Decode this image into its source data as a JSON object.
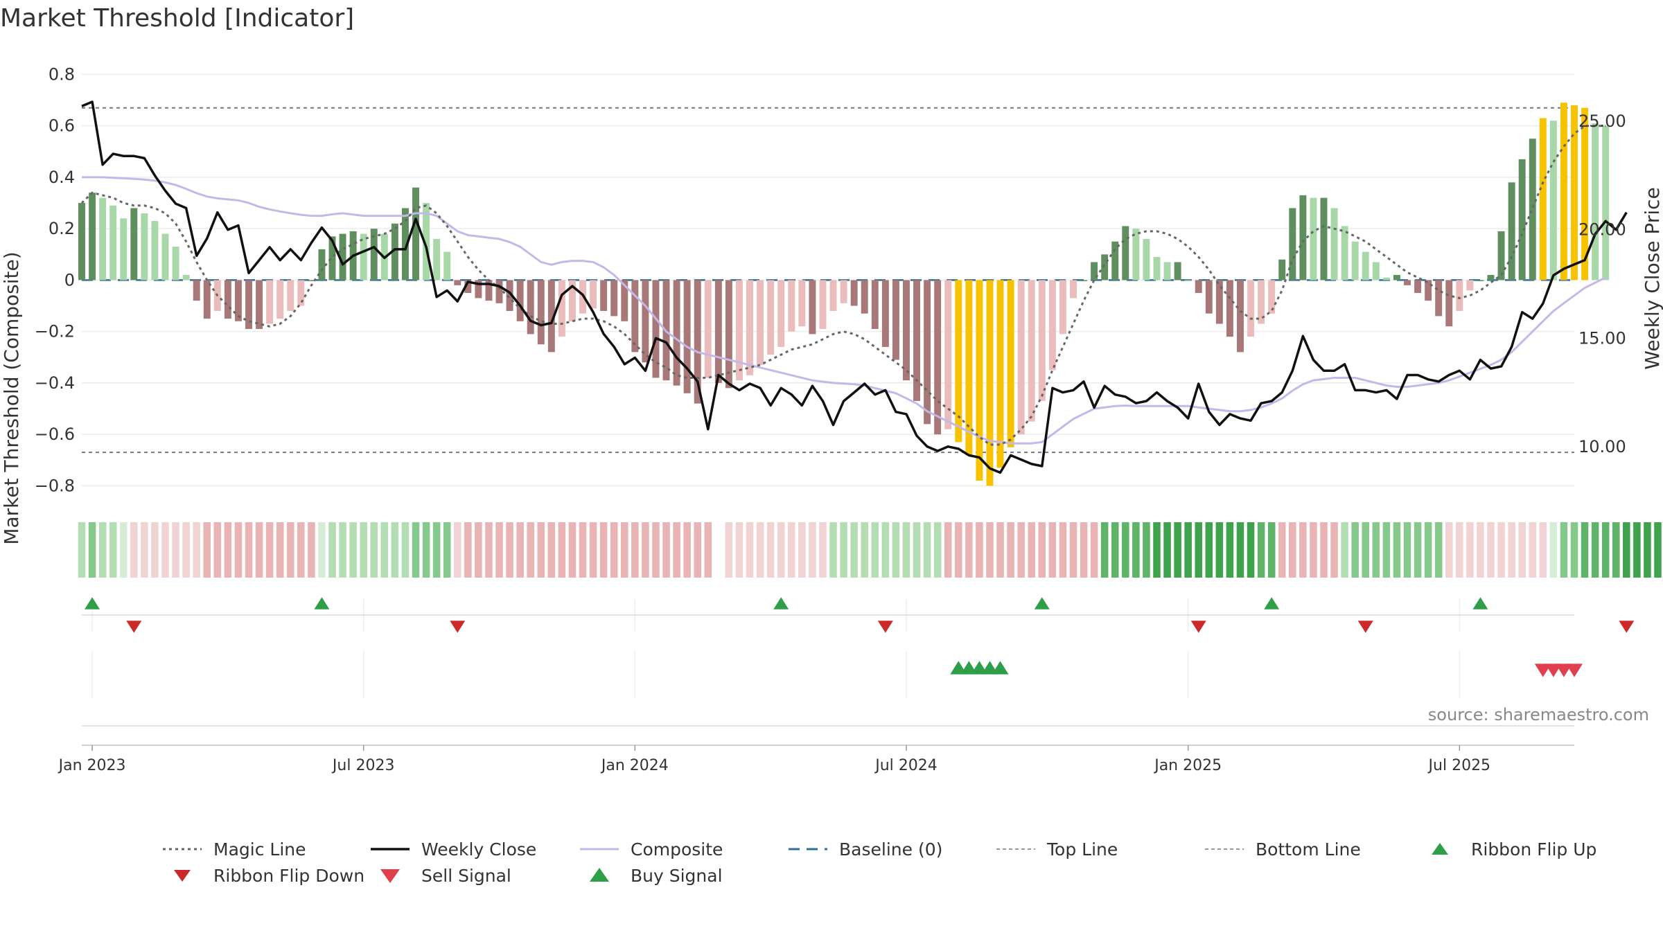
{
  "chart_data": {
    "type": "bar",
    "title": "Market Threshold [Indicator]",
    "ylabel": "Market Threshold (Composite)",
    "y2label": "Weekly Close Price",
    "ylim": [
      -0.85,
      0.82
    ],
    "y2lim": [
      7.6,
      27.4
    ],
    "yticks": [
      0.8,
      0.6,
      0.4,
      0.2,
      0,
      -0.2,
      -0.4,
      -0.6,
      -0.8
    ],
    "ytick_labels": [
      "0.8",
      "0.6",
      "0.4",
      "0.2",
      "0",
      "−0.2",
      "−0.4",
      "−0.6",
      "−0.8"
    ],
    "y2ticks": [
      25,
      20,
      15,
      10
    ],
    "y2tick_labels": [
      "25.00",
      "20.00",
      "15.00",
      "10.00"
    ],
    "x_range": [
      "2022-12-26",
      "2025-09-22"
    ],
    "xticks": [
      {
        "date": "2023-01-02",
        "label": "Jan 2023"
      },
      {
        "date": "2023-07-03",
        "label": "Jul 2023"
      },
      {
        "date": "2024-01-01",
        "label": "Jan 2024"
      },
      {
        "date": "2024-07-01",
        "label": "Jul 2024"
      },
      {
        "date": "2025-01-06",
        "label": "Jan 2025"
      },
      {
        "date": "2025-07-07",
        "label": "Jul 2025"
      }
    ],
    "top_line": 0.67,
    "bottom_line": -0.67,
    "baseline": 0,
    "start_date": "2022-12-26",
    "composite_bars": [
      0.3,
      0.34,
      0.32,
      0.29,
      0.24,
      0.28,
      0.26,
      0.23,
      0.18,
      0.13,
      0.02,
      -0.08,
      -0.15,
      -0.12,
      -0.15,
      -0.16,
      -0.19,
      -0.19,
      -0.17,
      -0.15,
      -0.12,
      -0.1,
      0,
      0.12,
      0.17,
      0.18,
      0.19,
      0.18,
      0.2,
      0.18,
      0.22,
      0.28,
      0.36,
      0.3,
      0.16,
      0.11,
      -0.02,
      -0.05,
      -0.07,
      -0.08,
      -0.09,
      -0.12,
      -0.16,
      -0.21,
      -0.25,
      -0.28,
      -0.22,
      -0.16,
      -0.13,
      -0.11,
      -0.12,
      -0.14,
      -0.16,
      -0.28,
      -0.32,
      -0.38,
      -0.39,
      -0.41,
      -0.44,
      -0.48,
      -0.38,
      -0.4,
      -0.42,
      -0.39,
      -0.37,
      -0.33,
      -0.29,
      -0.26,
      -0.2,
      -0.18,
      -0.21,
      -0.19,
      -0.12,
      -0.09,
      -0.1,
      -0.13,
      -0.19,
      -0.26,
      -0.31,
      -0.39,
      -0.47,
      -0.56,
      -0.6,
      -0.58,
      -0.63,
      -0.68,
      -0.78,
      -0.8,
      -0.73,
      -0.65,
      -0.6,
      -0.55,
      -0.47,
      -0.35,
      -0.21,
      -0.07,
      0,
      0.07,
      0.1,
      0.15,
      0.21,
      0.2,
      0.16,
      0.09,
      0.07,
      0.07,
      0,
      -0.05,
      -0.13,
      -0.17,
      -0.22,
      -0.28,
      -0.22,
      -0.17,
      -0.13,
      0.08,
      0.28,
      0.33,
      0.32,
      0.32,
      0.28,
      0.21,
      0.15,
      0.11,
      0.07,
      0.01,
      0.02,
      -0.02,
      -0.05,
      -0.08,
      -0.14,
      -0.18,
      -0.12,
      -0.04,
      0,
      0.02,
      0.19,
      0.38,
      0.47,
      0.55,
      0.63,
      0.62,
      0.69,
      0.68,
      0.67,
      0.61,
      0.6
    ],
    "weekly_close": [
      25.7,
      25.9,
      23.0,
      23.5,
      23.4,
      23.4,
      23.3,
      22.5,
      21.8,
      21.2,
      21.0,
      18.8,
      19.6,
      20.8,
      20.0,
      20.2,
      18.0,
      18.6,
      19.2,
      18.6,
      19.1,
      18.6,
      19.4,
      20.1,
      19.5,
      18.4,
      18.8,
      19.0,
      19.2,
      18.7,
      19.1,
      19.1,
      20.5,
      19.2,
      16.9,
      17.2,
      16.7,
      17.6,
      17.5,
      17.5,
      17.4,
      17.1,
      16.5,
      15.8,
      15.6,
      15.7,
      17.0,
      17.4,
      17.0,
      16.2,
      15.2,
      14.6,
      13.8,
      14.1,
      13.5,
      15.0,
      14.8,
      14.1,
      13.6,
      13.0,
      10.8,
      13.3,
      12.9,
      12.6,
      12.9,
      12.7,
      11.9,
      12.7,
      12.4,
      11.9,
      12.8,
      12.1,
      11.0,
      12.1,
      12.5,
      12.9,
      12.4,
      12.6,
      11.6,
      11.5,
      10.5,
      10.0,
      9.8,
      10.0,
      9.9,
      9.6,
      9.5,
      9.0,
      8.8,
      9.6,
      9.4,
      9.2,
      9.1,
      12.7,
      12.5,
      12.6,
      13.0,
      11.8,
      12.8,
      12.4,
      12.3,
      12.0,
      12.1,
      12.5,
      12.1,
      11.8,
      11.3,
      12.9,
      11.6,
      11.0,
      11.5,
      11.3,
      11.2,
      12.0,
      12.1,
      12.5,
      13.5,
      15.1,
      14.0,
      13.5,
      13.5,
      13.8,
      12.6,
      12.6,
      12.5,
      12.6,
      12.2,
      13.3,
      13.3,
      13.1,
      13.0,
      13.3,
      13.5,
      13.1,
      14.0,
      13.6,
      13.7,
      14.6,
      16.2,
      15.9,
      16.6,
      17.9,
      18.2,
      18.4,
      18.6,
      19.8,
      20.4,
      20.0,
      20.8
    ],
    "composite_line": [
      0.4,
      0.4,
      0.4,
      0.398,
      0.396,
      0.394,
      0.391,
      0.387,
      0.38,
      0.37,
      0.355,
      0.338,
      0.325,
      0.318,
      0.314,
      0.31,
      0.3,
      0.285,
      0.275,
      0.267,
      0.26,
      0.254,
      0.25,
      0.25,
      0.256,
      0.26,
      0.255,
      0.25,
      0.25,
      0.25,
      0.25,
      0.25,
      0.26,
      0.26,
      0.25,
      0.22,
      0.19,
      0.175,
      0.17,
      0.165,
      0.16,
      0.148,
      0.13,
      0.1,
      0.07,
      0.06,
      0.07,
      0.075,
      0.075,
      0.07,
      0.05,
      0.02,
      -0.02,
      -0.06,
      -0.1,
      -0.15,
      -0.2,
      -0.23,
      -0.26,
      -0.28,
      -0.29,
      -0.3,
      -0.31,
      -0.32,
      -0.33,
      -0.34,
      -0.35,
      -0.36,
      -0.37,
      -0.38,
      -0.39,
      -0.395,
      -0.4,
      -0.402,
      -0.405,
      -0.41,
      -0.42,
      -0.43,
      -0.44,
      -0.46,
      -0.48,
      -0.51,
      -0.53,
      -0.55,
      -0.57,
      -0.59,
      -0.61,
      -0.625,
      -0.63,
      -0.635,
      -0.635,
      -0.635,
      -0.63,
      -0.6,
      -0.57,
      -0.54,
      -0.52,
      -0.5,
      -0.495,
      -0.49,
      -0.488,
      -0.49,
      -0.49,
      -0.49,
      -0.49,
      -0.49,
      -0.49,
      -0.495,
      -0.5,
      -0.505,
      -0.51,
      -0.51,
      -0.505,
      -0.495,
      -0.48,
      -0.46,
      -0.43,
      -0.405,
      -0.39,
      -0.385,
      -0.38,
      -0.38,
      -0.38,
      -0.39,
      -0.4,
      -0.41,
      -0.415,
      -0.415,
      -0.41,
      -0.405,
      -0.4,
      -0.39,
      -0.375,
      -0.36,
      -0.345,
      -0.33,
      -0.31,
      -0.28,
      -0.24,
      -0.2,
      -0.16,
      -0.12,
      -0.09,
      -0.06,
      -0.03,
      -0.01,
      0.01
    ],
    "magic_line": [
      0.3,
      0.34,
      0.33,
      0.32,
      0.3,
      0.29,
      0.29,
      0.28,
      0.26,
      0.22,
      0.15,
      0.07,
      0,
      -0.06,
      -0.1,
      -0.14,
      -0.16,
      -0.17,
      -0.18,
      -0.17,
      -0.14,
      -0.09,
      -0.02,
      0.04,
      0.09,
      0.12,
      0.14,
      0.16,
      0.17,
      0.18,
      0.2,
      0.23,
      0.28,
      0.29,
      0.26,
      0.21,
      0.15,
      0.09,
      0.04,
      0,
      -0.03,
      -0.07,
      -0.11,
      -0.14,
      -0.16,
      -0.17,
      -0.17,
      -0.16,
      -0.15,
      -0.15,
      -0.16,
      -0.18,
      -0.21,
      -0.25,
      -0.29,
      -0.32,
      -0.34,
      -0.37,
      -0.38,
      -0.38,
      -0.38,
      -0.37,
      -0.36,
      -0.35,
      -0.34,
      -0.33,
      -0.31,
      -0.29,
      -0.27,
      -0.26,
      -0.25,
      -0.23,
      -0.21,
      -0.2,
      -0.21,
      -0.23,
      -0.26,
      -0.29,
      -0.32,
      -0.35,
      -0.39,
      -0.43,
      -0.47,
      -0.5,
      -0.53,
      -0.57,
      -0.61,
      -0.64,
      -0.64,
      -0.62,
      -0.58,
      -0.53,
      -0.45,
      -0.35,
      -0.26,
      -0.17,
      -0.08,
      0,
      0.06,
      0.12,
      0.16,
      0.18,
      0.19,
      0.19,
      0.18,
      0.16,
      0.13,
      0.09,
      0.04,
      -0.02,
      -0.07,
      -0.12,
      -0.15,
      -0.15,
      -0.12,
      -0.04,
      0.08,
      0.15,
      0.19,
      0.21,
      0.2,
      0.19,
      0.17,
      0.15,
      0.12,
      0.09,
      0.06,
      0.03,
      0.01,
      -0.01,
      -0.04,
      -0.06,
      -0.07,
      -0.06,
      -0.04,
      -0.01,
      0.02,
      0.09,
      0.18,
      0.28,
      0.38,
      0.46,
      0.52,
      0.57,
      0.6,
      0.6,
      0.6
    ],
    "ribbon_levels": [
      1,
      2,
      1,
      1,
      0,
      -1,
      -1,
      -1,
      -1,
      -1,
      -1,
      -1,
      -2,
      -2,
      -2,
      -2,
      -2,
      -2,
      -2,
      -2,
      -2,
      -2,
      -2,
      0,
      1,
      1,
      1,
      1,
      1,
      1,
      1,
      1,
      2,
      2,
      2,
      2,
      -1,
      -2,
      -2,
      -2,
      -2,
      -2,
      -2,
      -2,
      -2,
      -2,
      -2,
      -2,
      -2,
      -2,
      -2,
      -2,
      -2,
      -2,
      -2,
      -2,
      -2,
      -2,
      -2,
      -2,
      -2,
      null,
      -1,
      -1,
      -1,
      -1,
      -1,
      -1,
      -1,
      -1,
      -1,
      -1,
      1,
      1,
      1,
      1,
      1,
      1,
      1,
      1,
      1,
      1,
      1,
      -2,
      -2,
      -2,
      -2,
      -2,
      -2,
      -2,
      -2,
      -2,
      -2,
      -2,
      -2,
      -2,
      -2,
      -2,
      3,
      3,
      3,
      3,
      3,
      4,
      4,
      4,
      4,
      4,
      4,
      4,
      4,
      4,
      4,
      3,
      3,
      -2,
      -2,
      -2,
      -2,
      -2,
      -2,
      1,
      2,
      2,
      2,
      2,
      2,
      2,
      2,
      2,
      2,
      -1,
      -1,
      -1,
      -1,
      -1,
      -1,
      -1,
      -1,
      -1,
      -1,
      0,
      2,
      2,
      3,
      3,
      3,
      3,
      4,
      4,
      4,
      4,
      4
    ],
    "ribbon_flip_up": [
      1,
      23,
      67,
      92,
      114,
      134
    ],
    "ribbon_flip_down": [
      5,
      36,
      77,
      107,
      123,
      148
    ],
    "buy_signal": [
      84,
      85,
      86,
      87,
      88
    ],
    "sell_signal": [
      140,
      141,
      142,
      143
    ],
    "colors": {
      "up_strong": "#5f8f5f",
      "up_weak": "#a8d8a8",
      "down_strong": "#a87878",
      "down_weak": "#ebbcbc",
      "extreme": "#f7c200",
      "composite": "#c4b8e8",
      "weekly_close": "#111111",
      "magic": "#666666",
      "baseline": "#2e6f96",
      "ribbon_up": [
        "#d6ecd6",
        "#b3ddb3",
        "#86c98c",
        "#5fb46a",
        "#3fa34d"
      ],
      "ribbon_down": [
        "#f1d3d3",
        "#e8b4b4",
        "#d99494"
      ],
      "flip_up": "#2e9e48",
      "flip_down": "#cc2a2a",
      "buy": "#2e9e48",
      "sell": "#e0404e"
    },
    "legend": [
      {
        "label": "Magic Line"
      },
      {
        "label": "Weekly Close"
      },
      {
        "label": "Composite"
      },
      {
        "label": "Baseline (0)"
      },
      {
        "label": "Top Line"
      },
      {
        "label": "Bottom Line"
      },
      {
        "label": "Ribbon Flip Up"
      },
      {
        "label": "Ribbon Flip Down"
      },
      {
        "label": "Sell Signal"
      },
      {
        "label": "Buy Signal"
      }
    ],
    "source": "source: sharemaestro.com"
  }
}
